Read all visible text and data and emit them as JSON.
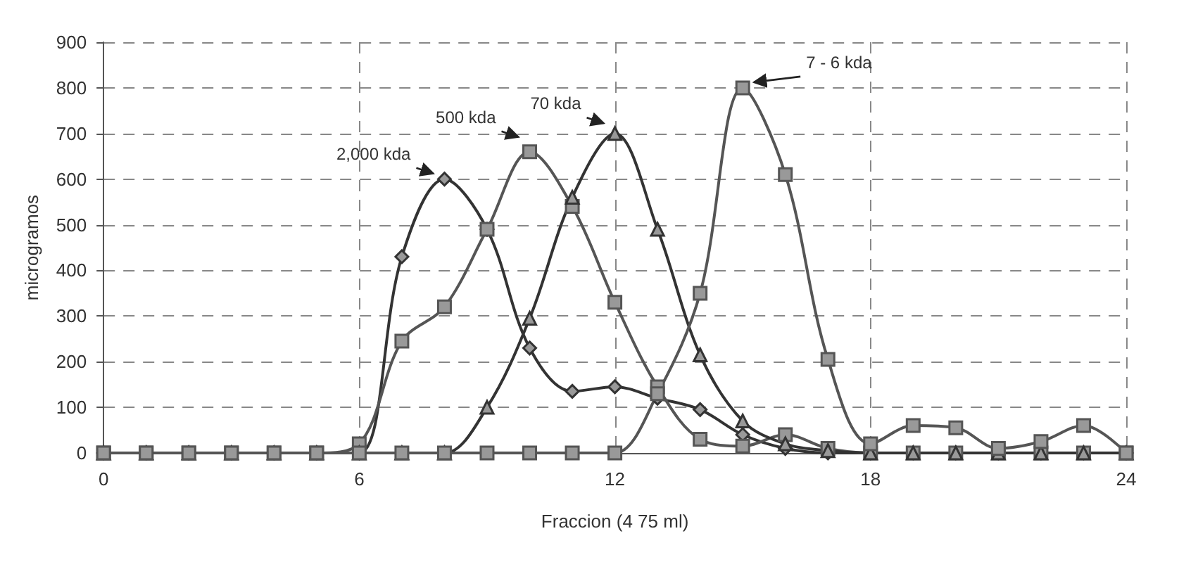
{
  "chart_data": {
    "type": "line",
    "xlabel": "Fraccion (4 75 ml)",
    "ylabel": "microgramos",
    "x": [
      0,
      1,
      2,
      3,
      4,
      5,
      6,
      7,
      8,
      9,
      10,
      11,
      12,
      13,
      14,
      15,
      16,
      17,
      18,
      19,
      20,
      21,
      22,
      23,
      24
    ],
    "xlim": [
      0,
      24
    ],
    "xticks": [
      0,
      6,
      12,
      18,
      24
    ],
    "ylim": [
      0,
      900
    ],
    "yticks": [
      0,
      100,
      200,
      300,
      400,
      500,
      600,
      700,
      800,
      900
    ],
    "grid": true,
    "line_style": "solid",
    "series": [
      {
        "color": "#333333",
        "marker": "diamond",
        "values": [
          0,
          0,
          0,
          0,
          0,
          0,
          0,
          430,
          600,
          490,
          230,
          135,
          145,
          120,
          95,
          40,
          10,
          0,
          0,
          0,
          0,
          0,
          0,
          0,
          0
        ]
      },
      {
        "color": "#555555",
        "marker": "square",
        "values": [
          0,
          0,
          0,
          0,
          0,
          0,
          20,
          245,
          320,
          490,
          660,
          540,
          330,
          145,
          30,
          15,
          40,
          10,
          0,
          0,
          0,
          0,
          0,
          0,
          0
        ]
      },
      {
        "color": "#333333",
        "marker": "triangle",
        "values": [
          0,
          0,
          0,
          0,
          0,
          0,
          0,
          0,
          0,
          100,
          295,
          560,
          700,
          490,
          215,
          70,
          20,
          5,
          0,
          0,
          0,
          0,
          0,
          0,
          0
        ]
      },
      {
        "color": "#555555",
        "marker": "square",
        "values": [
          0,
          0,
          0,
          0,
          0,
          0,
          0,
          0,
          0,
          0,
          0,
          0,
          0,
          130,
          350,
          800,
          610,
          205,
          20,
          60,
          55,
          10,
          25,
          60,
          0
        ]
      }
    ],
    "annotations": [
      {
        "text": "2,000 kda",
        "x": 8,
        "y": 600
      },
      {
        "text": "500 kda",
        "x": 10,
        "y": 680
      },
      {
        "text": "70 kda",
        "x": 12,
        "y": 710
      },
      {
        "text": "7 - 6 kda",
        "x": 15,
        "y": 800
      }
    ]
  }
}
